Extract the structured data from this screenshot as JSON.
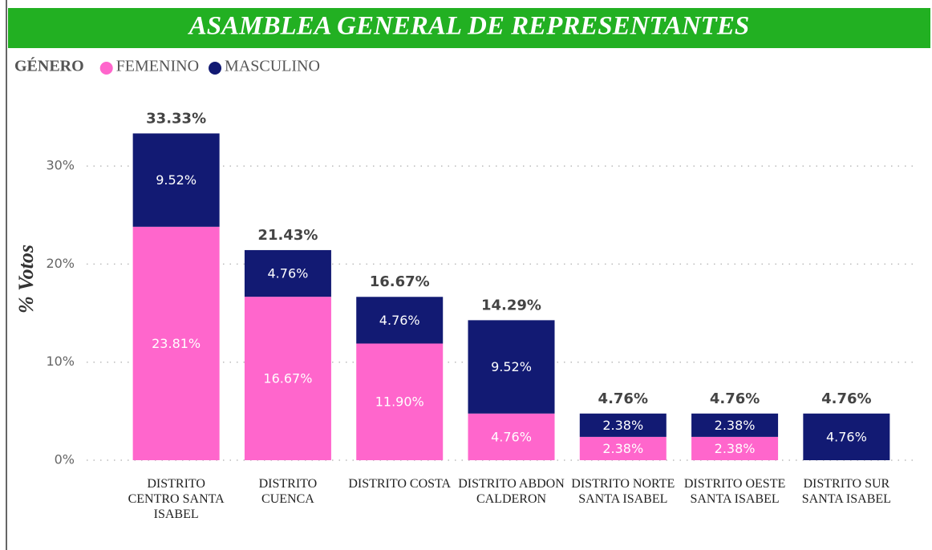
{
  "chart_data": {
    "type": "stacked_bar",
    "title": "ASAMBLEA GENERAL DE REPRESENTANTES",
    "y_label": "% Votos",
    "legend_title": "GÉNERO",
    "categories": [
      "DISTRITO CENTRO SANTA ISABEL",
      "DISTRITO CUENCA",
      "DISTRITO COSTA",
      "DISTRITO ABDON CALDERON",
      "DISTRITO NORTE SANTA ISABEL",
      "DISTRITO OESTE SANTA ISABEL",
      "DISTRITO SUR SANTA ISABEL"
    ],
    "series": [
      {
        "name": "FEMENINO",
        "color": "#ff66cc",
        "values": [
          23.81,
          16.67,
          11.9,
          4.76,
          2.38,
          2.38,
          null
        ],
        "value_labels": [
          "23.81%",
          "16.67%",
          "11.90%",
          "4.76%",
          "2.38%",
          "2.38%",
          null
        ]
      },
      {
        "name": "MASCULINO",
        "color": "#121a73",
        "values": [
          9.52,
          4.76,
          4.76,
          9.52,
          2.38,
          2.38,
          4.76
        ],
        "value_labels": [
          "9.52%",
          "4.76%",
          "4.76%",
          "9.52%",
          "2.38%",
          "2.38%",
          "4.76%"
        ]
      }
    ],
    "totals": [
      33.33,
      21.43,
      16.67,
      14.29,
      4.76,
      4.76,
      4.76
    ],
    "total_labels": [
      "33.33%",
      "21.43%",
      "16.67%",
      "14.29%",
      "4.76%",
      "4.76%",
      "4.76%"
    ],
    "ylim": [
      0,
      35
    ],
    "yticks": [
      {
        "value": 0,
        "label": "0%"
      },
      {
        "value": 10,
        "label": "10%"
      },
      {
        "value": 20,
        "label": "20%"
      },
      {
        "value": 30,
        "label": "30%"
      }
    ],
    "grid": true
  }
}
